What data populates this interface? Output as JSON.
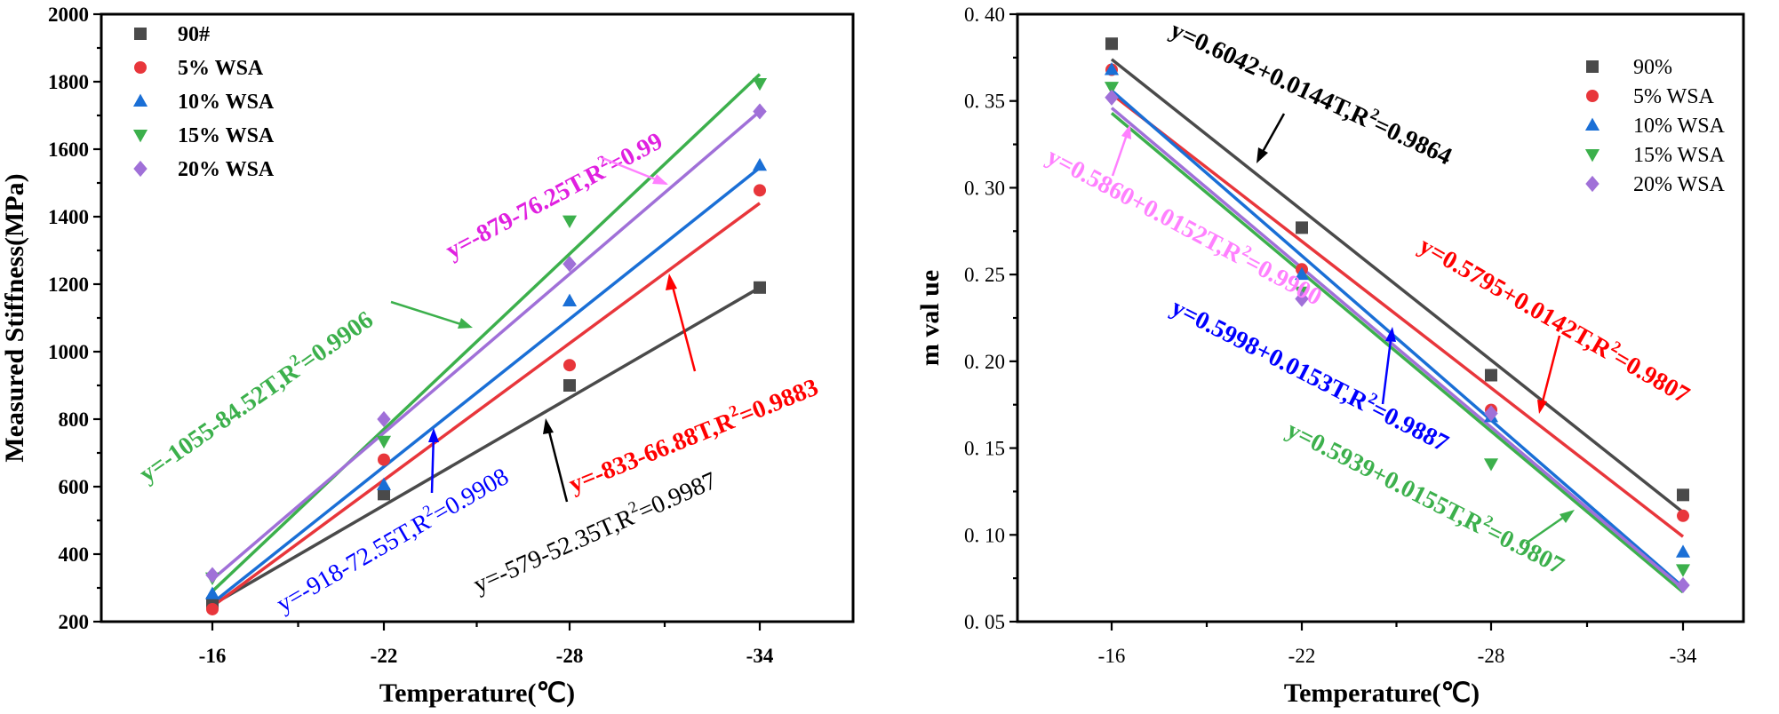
{
  "colors": {
    "90": "#4a4a4a",
    "5": "#e8363b",
    "10": "#1a6fd6",
    "15": "#3cb04c",
    "20": "#a070d8"
  },
  "chart_data": [
    {
      "type": "scatter",
      "title": "",
      "xlabel": "Temperature(℃)",
      "ylabel": "Measured Stiffness(MPa)",
      "categories": [
        "-16",
        "-22",
        "-28",
        "-34"
      ],
      "ylim": [
        200,
        2000
      ],
      "yticks": [
        "200",
        "400",
        "600",
        "800",
        "1000",
        "1200",
        "1400",
        "1600",
        "1800",
        "2000"
      ],
      "series": [
        {
          "name": "90#",
          "key": "90",
          "marker": "square",
          "values": [
            255,
            578,
            900,
            1190
          ],
          "fit": [
            250,
            1190
          ]
        },
        {
          "name": "5% WSA",
          "key": "5",
          "marker": "circle",
          "values": [
            237,
            680,
            960,
            1478
          ],
          "fit": [
            245,
            1440
          ]
        },
        {
          "name": "10% WSA",
          "key": "10",
          "marker": "triangle-up",
          "values": [
            282,
            605,
            1150,
            1552
          ],
          "fit": [
            255,
            1545
          ]
        },
        {
          "name": "15% WSA",
          "key": "15",
          "marker": "triangle-down",
          "values": [
            330,
            735,
            1388,
            1795
          ],
          "fit": [
            290,
            1822
          ]
        },
        {
          "name": "20% WSA",
          "key": "20",
          "marker": "diamond",
          "values": [
            338,
            800,
            1260,
            1712
          ],
          "fit": [
            325,
            1712
          ]
        }
      ],
      "annotations": [
        {
          "prefix": "y=-879-76.25T,R",
          "suffix": "=0.99",
          "color": "#e020e0",
          "bold": true
        },
        {
          "prefix": "y=-1055-84.52T,R",
          "suffix": "=0.9906",
          "color": "#3cb04c",
          "bold": true
        },
        {
          "prefix": "y=-833-66.88T,R",
          "suffix": "=0.9883",
          "color": "#ff0000",
          "bold": true
        },
        {
          "prefix": "y=-918-72.55T,R",
          "suffix": "=0.9908",
          "color": "#0000ff",
          "bold": false
        },
        {
          "prefix": "y=-579-52.35T,R",
          "suffix": "=0.9987",
          "color": "#000000",
          "bold": false
        }
      ]
    },
    {
      "type": "scatter",
      "title": "",
      "xlabel": "Temperature(℃)",
      "ylabel": "m val ue",
      "categories": [
        "-16",
        "-22",
        "-28",
        "-34"
      ],
      "ylim": [
        0.05,
        0.4
      ],
      "yticks": [
        "0. 05",
        "0. 10",
        "0. 15",
        "0. 20",
        "0. 25",
        "0. 30",
        "0. 35",
        "0. 40"
      ],
      "series": [
        {
          "name": "90%",
          "key": "90",
          "marker": "square",
          "values": [
            0.383,
            0.277,
            0.192,
            0.123
          ],
          "fit": [
            0.374,
            0.113
          ]
        },
        {
          "name": "5% WSA",
          "key": "5",
          "marker": "circle",
          "values": [
            0.368,
            0.253,
            0.172,
            0.111
          ],
          "fit": [
            0.354,
            0.099
          ]
        },
        {
          "name": "10% WSA",
          "key": "10",
          "marker": "triangle-up",
          "values": [
            0.368,
            0.25,
            0.168,
            0.09
          ],
          "fit": [
            0.356,
            0.07
          ]
        },
        {
          "name": "15% WSA",
          "key": "15",
          "marker": "triangle-down",
          "values": [
            0.358,
            0.24,
            0.141,
            0.08
          ],
          "fit": [
            0.343,
            0.067
          ]
        },
        {
          "name": "20% WSA",
          "key": "20",
          "marker": "diamond",
          "values": [
            0.352,
            0.236,
            0.17,
            0.071
          ],
          "fit": [
            0.346,
            0.069
          ]
        }
      ],
      "annotations": [
        {
          "prefix": "y=0.6042+0.0144T,R",
          "suffix": "=0.9864",
          "color": "#000000",
          "bold": true
        },
        {
          "prefix": "y=0.5860+0.0152T,R",
          "suffix": "=0.9900",
          "color": "#ff80ff",
          "bold": true
        },
        {
          "prefix": "y=0.5795+0.0142T,R",
          "suffix": "=0.9807",
          "color": "#ff0000",
          "bold": true
        },
        {
          "prefix": "y=0.5998+0.0153T,R",
          "suffix": "=0.9887",
          "color": "#0000ff",
          "bold": true
        },
        {
          "prefix": "y=0.5939+0.0155T,R",
          "suffix": "=0.9807",
          "color": "#3cb04c",
          "bold": true
        }
      ]
    }
  ]
}
